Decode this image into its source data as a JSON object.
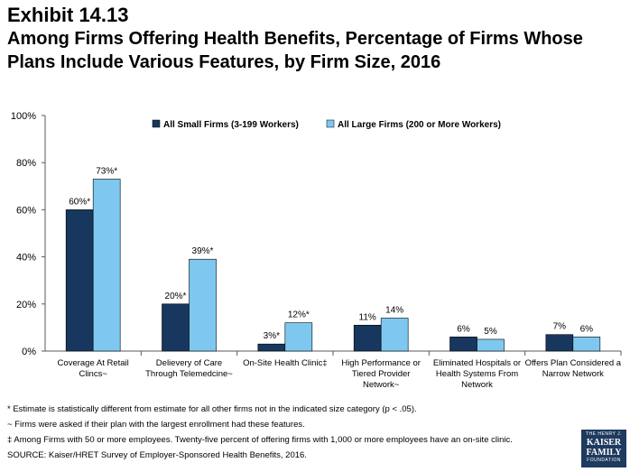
{
  "header": {
    "exhibit": "Exhibit 14.13",
    "title": "Among Firms Offering Health Benefits, Percentage of Firms Whose Plans Include Various Features, by Firm Size, 2016"
  },
  "chart_data": {
    "type": "bar",
    "title": "Among Firms Offering Health Benefits, Percentage of Firms Whose Plans Include Various Features, by Firm Size, 2016",
    "categories": [
      [
        "Coverage At Retail",
        "Clincs~"
      ],
      [
        "Delievery of Care",
        "Through Telemedcine~"
      ],
      [
        "On-Site Health Clinic‡"
      ],
      [
        "High Performance or",
        "Tiered Provider",
        "Network~"
      ],
      [
        "Eliminated Hospitals or",
        "Health Systems From",
        "Network"
      ],
      [
        "Offers Plan Considered a",
        "Narrow Network"
      ]
    ],
    "series": [
      {
        "name": "All Small Firms (3-199 Workers)",
        "color": "#17375e",
        "values": [
          60,
          20,
          3,
          11,
          6,
          7
        ],
        "labels": [
          "60%*",
          "20%*",
          "3%*",
          "11%",
          "6%",
          "7%"
        ]
      },
      {
        "name": "All Large Firms (200 or More Workers)",
        "color": "#7ec8ef",
        "values": [
          73,
          39,
          12,
          14,
          5,
          6
        ],
        "labels": [
          "73%*",
          "39%*",
          "12%*",
          "14%",
          "5%",
          "6%"
        ]
      }
    ],
    "ylim": [
      0,
      100
    ],
    "yticks": [
      "0%",
      "20%",
      "40%",
      "60%",
      "80%",
      "100%"
    ],
    "xlabel": "",
    "ylabel": "",
    "grid": false,
    "legend": "top-center"
  },
  "notes": [
    "* Estimate is statistically different from estimate for all other firms not in the indicated size category (p < .05).",
    "~ Firms were asked if their plan with the largest enrollment had these features.",
    "‡ Among Firms with 50 or more employees. Twenty-five percent of offering firms with 1,000 or more employees have an on-site clinic.",
    "SOURCE: Kaiser/HRET Survey of Employer-Sponsored Health Benefits, 2016."
  ],
  "logo": {
    "line1": "THE HENRY J.",
    "line2": "KAISER",
    "line3": "FAMILY",
    "line4": "FOUNDATION"
  }
}
